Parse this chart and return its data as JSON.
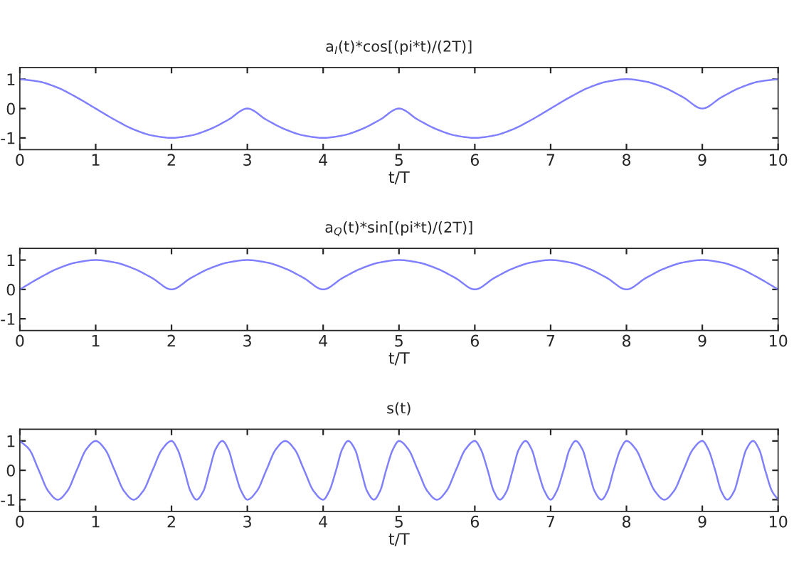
{
  "chart_data": [
    {
      "type": "line",
      "title": "a$_{I}$(t)*cos[(pi*t)/(2T)]",
      "xlabel": "t/T",
      "xlim": [
        0,
        10
      ],
      "xticks": [
        0,
        1,
        2,
        3,
        4,
        5,
        6,
        7,
        8,
        9,
        10
      ],
      "ylim": [
        -1.4,
        1.4
      ],
      "yticks": [
        -1,
        0,
        1
      ],
      "grid": false,
      "legend": false,
      "series": [
        {
          "color": "#8080ff",
          "x": [
            0,
            0.25,
            0.5,
            0.75,
            1,
            1.25,
            1.5,
            1.75,
            2,
            2.25,
            2.5,
            2.75,
            3,
            3.25,
            3.5,
            3.75,
            4,
            4.25,
            4.5,
            4.75,
            5,
            5.25,
            5.5,
            5.75,
            6,
            6.25,
            6.5,
            6.75,
            7,
            7.25,
            7.5,
            7.75,
            8,
            8.25,
            8.5,
            8.75,
            9,
            9.25,
            9.5,
            9.75,
            10
          ],
          "values": [
            1,
            0.92,
            0.71,
            0.38,
            0,
            -0.38,
            -0.71,
            -0.92,
            -1,
            -0.92,
            -0.71,
            -0.38,
            0,
            -0.38,
            -0.71,
            -0.92,
            -1,
            -0.92,
            -0.71,
            -0.38,
            0,
            -0.38,
            -0.71,
            -0.92,
            -1,
            -0.92,
            -0.71,
            -0.38,
            0,
            0.38,
            0.71,
            0.92,
            1,
            0.92,
            0.71,
            0.38,
            0,
            0.38,
            0.71,
            0.92,
            1
          ]
        }
      ]
    },
    {
      "type": "line",
      "title": "a$_{Q}$(t)*sin[(pi*t)/(2T)]",
      "xlabel": "t/T",
      "xlim": [
        0,
        10
      ],
      "xticks": [
        0,
        1,
        2,
        3,
        4,
        5,
        6,
        7,
        8,
        9,
        10
      ],
      "ylim": [
        -1.4,
        1.4
      ],
      "yticks": [
        -1,
        0,
        1
      ],
      "grid": false,
      "legend": false,
      "series": [
        {
          "color": "#8080ff",
          "x": [
            0,
            0.25,
            0.5,
            0.75,
            1,
            1.25,
            1.5,
            1.75,
            2,
            2.25,
            2.5,
            2.75,
            3,
            3.25,
            3.5,
            3.75,
            4,
            4.25,
            4.5,
            4.75,
            5,
            5.25,
            5.5,
            5.75,
            6,
            6.25,
            6.5,
            6.75,
            7,
            7.25,
            7.5,
            7.75,
            8,
            8.25,
            8.5,
            8.75,
            9,
            9.25,
            9.5,
            9.75,
            10
          ],
          "values": [
            0,
            0.38,
            0.71,
            0.92,
            1,
            0.92,
            0.71,
            0.38,
            0,
            0.38,
            0.71,
            0.92,
            1,
            0.92,
            0.71,
            0.38,
            0,
            0.38,
            0.71,
            0.92,
            1,
            0.92,
            0.71,
            0.38,
            0,
            0.38,
            0.71,
            0.92,
            1,
            0.92,
            0.71,
            0.38,
            0,
            0.38,
            0.71,
            0.92,
            1,
            0.92,
            0.71,
            0.38,
            0
          ]
        }
      ]
    },
    {
      "type": "line",
      "title": "s(t)",
      "xlabel": "t/T",
      "xlim": [
        0,
        10
      ],
      "xticks": [
        0,
        1,
        2,
        3,
        4,
        5,
        6,
        7,
        8,
        9,
        10
      ],
      "ylim": [
        -1.4,
        1.4
      ],
      "yticks": [
        -1,
        0,
        1
      ],
      "grid": false,
      "legend": false,
      "series": [
        {
          "color": "#8080ff",
          "x": [
            0,
            0.125,
            0.25,
            0.375,
            0.5,
            0.625,
            0.75,
            0.875,
            1,
            1.125,
            1.25,
            1.375,
            1.5,
            1.625,
            1.75,
            1.875,
            2,
            2.08,
            2.17,
            2.25,
            2.33,
            2.42,
            2.5,
            2.58,
            2.67,
            2.75,
            2.83,
            2.92,
            3,
            3.125,
            3.25,
            3.375,
            3.5,
            3.625,
            3.75,
            3.875,
            4,
            4.08,
            4.17,
            4.25,
            4.33,
            4.42,
            4.5,
            4.58,
            4.67,
            4.75,
            4.83,
            4.92,
            5,
            5.125,
            5.25,
            5.375,
            5.5,
            5.625,
            5.75,
            5.875,
            6,
            6.08,
            6.17,
            6.25,
            6.33,
            6.42,
            6.5,
            6.58,
            6.67,
            6.75,
            6.83,
            6.92,
            7,
            7.08,
            7.17,
            7.25,
            7.33,
            7.42,
            7.5,
            7.58,
            7.67,
            7.75,
            7.83,
            7.92,
            8,
            8.125,
            8.25,
            8.375,
            8.5,
            8.625,
            8.75,
            8.875,
            9,
            9.08,
            9.17,
            9.25,
            9.33,
            9.42,
            9.5,
            9.58,
            9.67,
            9.75,
            9.83,
            9.92,
            10
          ],
          "values": [
            1,
            0.71,
            0,
            -0.71,
            -1,
            -0.71,
            0,
            0.71,
            1,
            0.71,
            0,
            -0.71,
            -1,
            -0.71,
            0,
            0.71,
            1,
            0.71,
            0,
            -0.71,
            -1,
            -0.71,
            0,
            0.71,
            1,
            0.71,
            0,
            -0.71,
            -1,
            -0.71,
            0,
            0.71,
            1,
            0.71,
            0,
            -0.71,
            -1,
            -0.71,
            0,
            0.71,
            1,
            0.71,
            0,
            -0.71,
            -1,
            -0.71,
            0,
            0.71,
            1,
            0.71,
            0,
            -0.71,
            -1,
            -0.71,
            0,
            0.71,
            1,
            0.71,
            0,
            -0.71,
            -1,
            -0.71,
            0,
            0.71,
            1,
            0.71,
            0,
            -0.71,
            -1,
            -0.71,
            0,
            0.71,
            1,
            0.71,
            0,
            -0.71,
            -1,
            -0.71,
            0,
            0.71,
            1,
            0.71,
            0,
            -0.71,
            -1,
            -0.71,
            0,
            0.71,
            1,
            0.71,
            0,
            -0.71,
            -1,
            -0.71,
            0,
            0.71,
            1,
            0.71,
            0,
            -0.71,
            -1
          ]
        }
      ]
    }
  ]
}
